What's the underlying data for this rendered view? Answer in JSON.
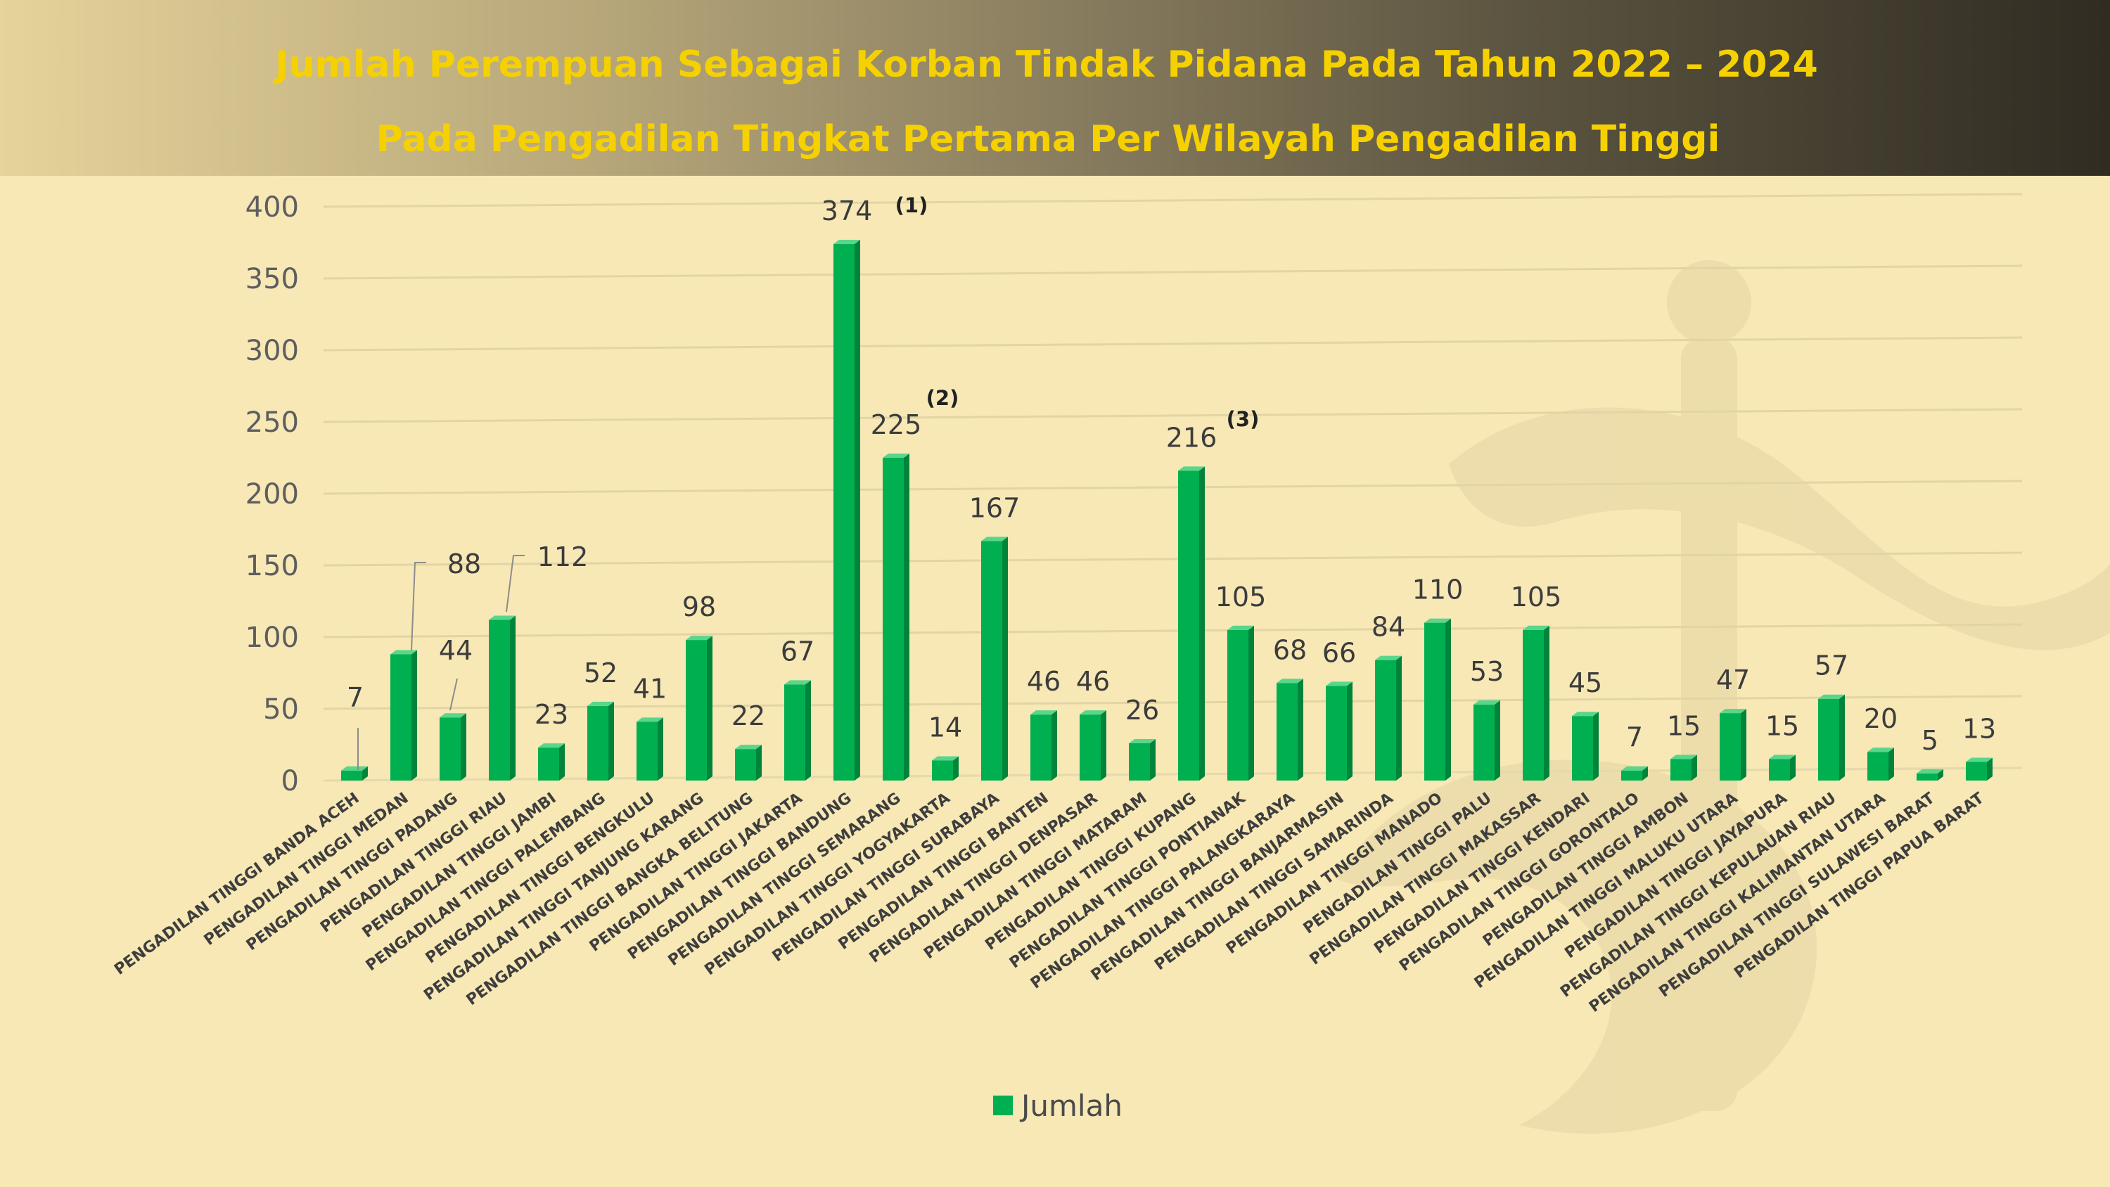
{
  "title_line1": "Jumlah Perempuan Sebagai Korban Tindak Pidana Pada Tahun 2022 – 2024",
  "title_line2": "Pada Pengadilan Tingkat Pertama Per Wilayah Pengadilan Tinggi",
  "colors": {
    "bar_front": "#00b050",
    "bar_side": "#00843b",
    "bar_top": "#5ad68a",
    "title": "#f6d100",
    "background": "#f7e8b6"
  },
  "chart_data": {
    "type": "bar",
    "ylim": [
      0,
      400
    ],
    "yticks": [
      0,
      50,
      100,
      150,
      200,
      250,
      300,
      350,
      400
    ],
    "grid": true,
    "legend_position": "bottom",
    "categories": [
      "PENGADILAN TINGGI BANDA ACEH",
      "PENGADILAN TINGGI MEDAN",
      "PENGADILAN TINGGI PADANG",
      "PENGADILAN TINGGI RIAU",
      "PENGADILAN TINGGI JAMBI",
      "PENGADILAN TINGGI PALEMBANG",
      "PENGADILAN TINGGI BENGKULU",
      "PENGADILAN TINGGI TANJUNG KARANG",
      "PENGADILAN TINGGI BANGKA BELITUNG",
      "PENGADILAN TINGGI JAKARTA",
      "PENGADILAN TINGGI BANDUNG",
      "PENGADILAN TINGGI SEMARANG",
      "PENGADILAN TINGGI YOGYAKARTA",
      "PENGADILAN TINGGI SURABAYA",
      "PENGADILAN TINGGI BANTEN",
      "PENGADILAN TINGGI DENPASAR",
      "PENGADILAN TINGGI MATARAM",
      "PENGADILAN TINGGI KUPANG",
      "PENGADILAN TINGGI PONTIANAK",
      "PENGADILAN TINGGI PALANGKARAYA",
      "PENGADILAN TINGGI BANJARMASIN",
      "PENGADILAN TINGGI SAMARINDA",
      "PENGADILAN TINGGI MANADO",
      "PENGADILAN TINGGI PALU",
      "PENGADILAN TINGGI MAKASSAR",
      "PENGADILAN TINGGI KENDARI",
      "PENGADILAN TINGGI GORONTALO",
      "PENGADILAN TINGGI AMBON",
      "PENGADILAN TINGGI MALUKU UTARA",
      "PENGADILAN TINGGI JAYAPURA",
      "PENGADILAN TINGGI KEPULAUAN RIAU",
      "PENGADILAN TINGGI KALIMANTAN UTARA",
      "PENGADILAN TINGGI SULAWESI BARAT",
      "PENGADILAN TINGGI PAPUA BARAT"
    ],
    "series": [
      {
        "name": "Jumlah",
        "values": [
          7,
          88,
          44,
          112,
          23,
          52,
          41,
          98,
          22,
          67,
          374,
          225,
          14,
          167,
          46,
          46,
          26,
          216,
          105,
          68,
          66,
          84,
          110,
          53,
          105,
          45,
          7,
          15,
          47,
          15,
          57,
          20,
          5,
          13
        ]
      }
    ],
    "rank_notes": [
      {
        "category_index": 10,
        "text": "(1)"
      },
      {
        "category_index": 11,
        "text": "(2)"
      },
      {
        "category_index": 17,
        "text": "(3)"
      }
    ]
  }
}
